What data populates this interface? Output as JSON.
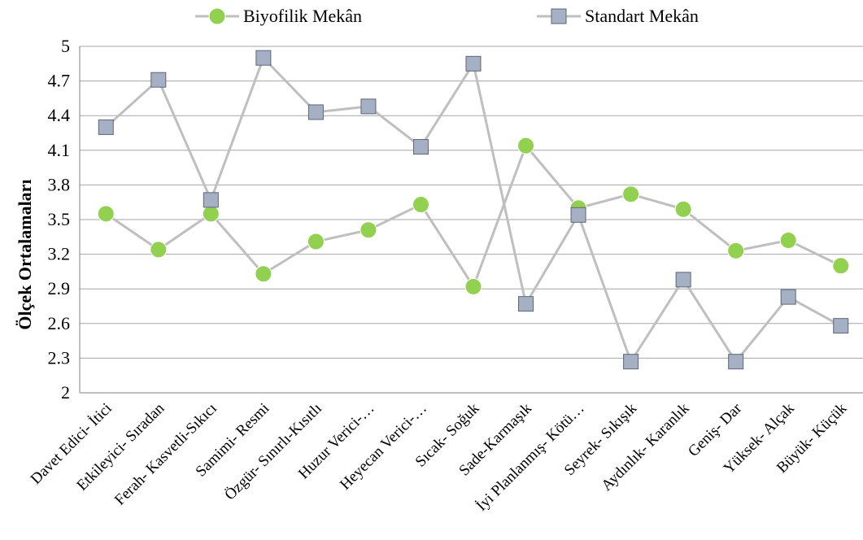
{
  "chart_data": {
    "type": "line",
    "ylabel": "Ölçek Ortalamaları",
    "xlabel": "",
    "ylim": [
      2,
      5
    ],
    "yticks": [
      "2",
      "2.3",
      "2.6",
      "2.9",
      "3.2",
      "3.5",
      "3.8",
      "4.1",
      "4.4",
      "4.7",
      "5"
    ],
    "ytick_values": [
      2,
      2.3,
      2.6,
      2.9,
      3.2,
      3.5,
      3.8,
      4.1,
      4.4,
      4.7,
      5
    ],
    "grid": true,
    "legend_position": "top",
    "categories": [
      "Davet Edici- İtici",
      "Etkileyici- Sıradan",
      "Ferah- Kasvetli-Sıkıcı",
      "Samimi- Resmi",
      "Özgür- Sınırlı-Kısıtlı",
      "Huzur Verici-…",
      "Heyecan Verici-…",
      "Sıcak- Soğuk",
      "Sade-Karmaşık",
      "İyi Planlanmış- Kötü…",
      "Seyrek- Sıkışık",
      "Aydınlık- Karanlık",
      "Geniş- Dar",
      "Yüksek- Alçak",
      "Büyük- Küçük"
    ],
    "series": [
      {
        "name": "Biyofilik Mekân",
        "marker": "circle",
        "color": "#92d050",
        "line_color": "#bfbfbf",
        "values": [
          3.55,
          3.24,
          3.55,
          3.03,
          3.31,
          3.41,
          3.63,
          2.92,
          4.14,
          3.6,
          3.72,
          3.59,
          3.23,
          3.32,
          3.1
        ]
      },
      {
        "name": "Standart Mekân",
        "marker": "square",
        "color": "#a6b0c4",
        "line_color": "#bfbfbf",
        "values": [
          4.3,
          4.71,
          3.67,
          4.9,
          4.43,
          4.48,
          4.13,
          4.85,
          2.77,
          3.54,
          2.27,
          2.98,
          2.27,
          2.83,
          2.58
        ]
      }
    ]
  }
}
